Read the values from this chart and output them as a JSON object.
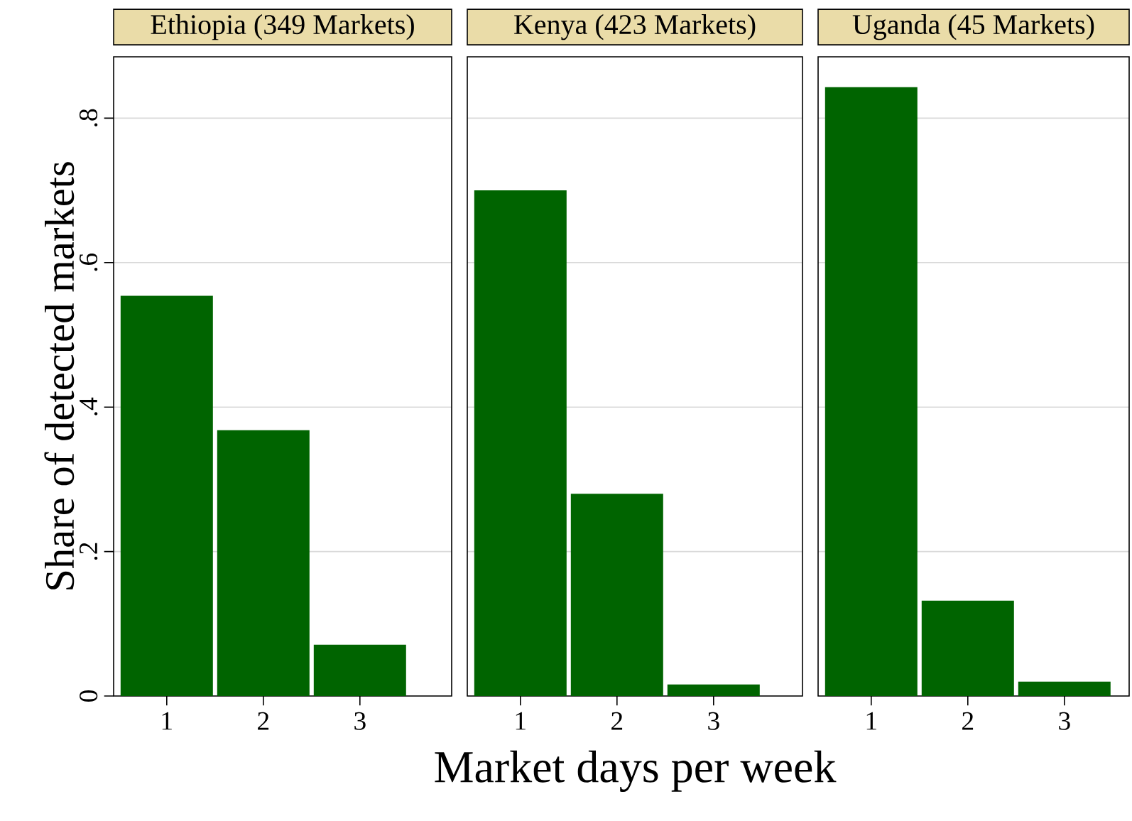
{
  "chart_data": [
    {
      "type": "bar",
      "title": "Ethiopia (349 Markets)",
      "categories": [
        "1",
        "2",
        "3"
      ],
      "values": [
        0.554,
        0.368,
        0.071
      ],
      "color": "#006400",
      "ylim": [
        0,
        0.885
      ],
      "yticks": [
        0,
        {
          "value": 0.2,
          "label": ".2"
        },
        {
          "value": 0.4,
          "label": ".4"
        },
        {
          "value": 0.6,
          "label": ".6"
        },
        {
          "value": 0.8,
          "label": ".8"
        }
      ],
      "grid": "y",
      "ylabel": "Share of detected markets"
    },
    {
      "type": "bar",
      "title": "Kenya (423 Markets)",
      "categories": [
        "1",
        "2",
        "3"
      ],
      "values": [
        0.7,
        0.28,
        0.016
      ],
      "color": "#006400",
      "ylim": [
        0,
        0.885
      ],
      "yticks": [
        {
          "value": 0,
          "label": null
        },
        {
          "value": 0.2,
          "label": null
        },
        {
          "value": 0.4,
          "label": null
        },
        {
          "value": 0.6,
          "label": null
        },
        {
          "value": 0.8,
          "label": null
        }
      ],
      "grid": "y",
      "tick_labels": "x",
      "xlabel": "Market days per week"
    },
    {
      "type": "bar",
      "title": "Uganda (45 Markets)",
      "categories": [
        "1",
        "2",
        "3"
      ],
      "values": [
        0.843,
        0.132,
        0.02
      ],
      "color": "#006400",
      "ylim": [
        0,
        0.885
      ],
      "yticks": [
        {
          "value": 0,
          "label": null
        },
        {
          "value": 0.2,
          "label": null
        },
        {
          "value": 0.4,
          "label": null
        },
        {
          "value": 0.6,
          "label": null
        },
        {
          "value": 0.8,
          "label": null
        }
      ],
      "grid": "y",
      "tick_labels": "x"
    }
  ]
}
